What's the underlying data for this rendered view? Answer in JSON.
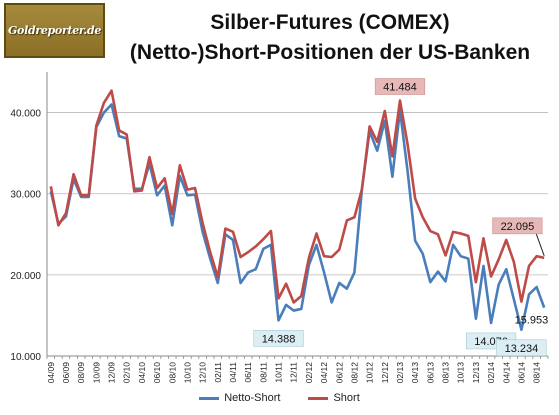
{
  "logo": {
    "text": "Goldreporter.de"
  },
  "chart_data": {
    "type": "line",
    "title": "Silber-Futures (COMEX)",
    "subtitle": "(Netto-)Short-Positionen der US-Banken",
    "xlabel": "",
    "ylabel": "",
    "ylim": [
      10000,
      45000
    ],
    "yticks": [
      "10.000",
      "20.000",
      "30.000",
      "40.000"
    ],
    "ytick_values": [
      10000,
      20000,
      30000,
      40000
    ],
    "grid": true,
    "legend": "bottom-center",
    "x": [
      "04/09",
      "05/09",
      "06/09",
      "07/09",
      "08/09",
      "09/09",
      "10/09",
      "11/09",
      "12/09",
      "01/10",
      "02/10",
      "03/10",
      "04/10",
      "05/10",
      "06/10",
      "07/10",
      "08/10",
      "09/10",
      "10/10",
      "11/10",
      "12/10",
      "01/11",
      "02/11",
      "03/11",
      "04/11",
      "05/11",
      "06/11",
      "07/11",
      "08/11",
      "09/11",
      "10/11",
      "11/11",
      "12/11",
      "01/12",
      "02/12",
      "03/12",
      "04/12",
      "05/12",
      "06/12",
      "07/12",
      "08/12",
      "09/12",
      "10/12",
      "11/12",
      "12/12",
      "01/13",
      "02/13",
      "03/13",
      "04/13",
      "05/13",
      "06/13",
      "07/13",
      "08/13",
      "09/13",
      "10/13",
      "11/13",
      "12/13",
      "01/14",
      "02/14",
      "03/14",
      "04/14",
      "05/14",
      "06/14",
      "07/14",
      "08/14",
      "09/14"
    ],
    "xtick_labels": [
      "04/09",
      "06/09",
      "08/09",
      "10/09",
      "12/09",
      "02/10",
      "04/10",
      "06/10",
      "08/10",
      "10/10",
      "12/10",
      "02/11",
      "04/11",
      "06/11",
      "08/11",
      "10/11",
      "12/11",
      "02/12",
      "04/12",
      "06/12",
      "08/12",
      "10/12",
      "12/12",
      "02/13",
      "04/13",
      "06/13",
      "08/13",
      "10/13",
      "12/13",
      "02/14",
      "04/14",
      "06/14",
      "08/14"
    ],
    "series": [
      {
        "name": "Netto-Short",
        "color": "#4a7ebb",
        "values": [
          30300,
          26300,
          27200,
          31800,
          29600,
          29600,
          38200,
          40000,
          41000,
          37100,
          36800,
          30600,
          30600,
          33700,
          29800,
          31000,
          26100,
          32200,
          29800,
          29900,
          25300,
          22000,
          19000,
          25000,
          24300,
          19000,
          20300,
          20700,
          23200,
          23700,
          14388,
          16300,
          15600,
          15800,
          21200,
          23700,
          20300,
          16600,
          19000,
          18300,
          20300,
          30700,
          37700,
          35300,
          39000,
          32100,
          40300,
          32800,
          24200,
          22600,
          19100,
          20400,
          19200,
          23700,
          22300,
          22000,
          14600,
          21100,
          14076,
          18800,
          20700,
          17000,
          13234,
          17600,
          18500,
          15953
        ]
      },
      {
        "name": "Short",
        "color": "#be4b48",
        "values": [
          30900,
          26100,
          27600,
          32400,
          29800,
          29800,
          38400,
          41200,
          42700,
          37800,
          37300,
          30300,
          30400,
          34500,
          30700,
          31900,
          27500,
          33500,
          30500,
          30700,
          26400,
          22800,
          19700,
          25700,
          25300,
          22200,
          22800,
          23500,
          24400,
          25400,
          17100,
          18900,
          16600,
          17400,
          22100,
          25100,
          22300,
          22200,
          23100,
          26700,
          27100,
          30600,
          38300,
          36400,
          40200,
          34600,
          41484,
          36100,
          29400,
          27100,
          25400,
          25000,
          22400,
          25300,
          25100,
          24800,
          19100,
          24500,
          19800,
          21900,
          24300,
          21600,
          16700,
          21100,
          22300,
          22095
        ]
      }
    ],
    "annotations": [
      {
        "text": "41.484",
        "series": "Short",
        "index": 46
      },
      {
        "text": "22.095",
        "series": "Short",
        "index": 65
      },
      {
        "text": "14.388",
        "series": "Netto-Short",
        "index": 30
      },
      {
        "text": "14.076",
        "series": "Netto-Short",
        "index": 58
      },
      {
        "text": "13.234",
        "series": "Netto-Short",
        "index": 62
      },
      {
        "text": "15.953",
        "series": "Netto-Short",
        "index": 65
      }
    ]
  }
}
